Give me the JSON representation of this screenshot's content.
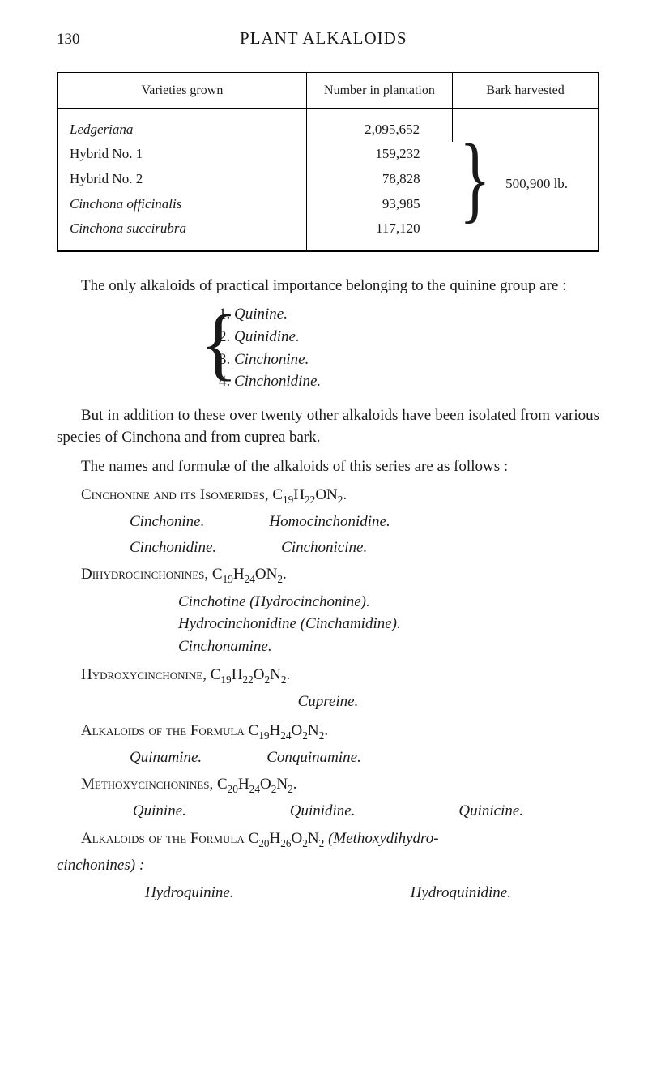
{
  "header": {
    "page_number": "130",
    "title": "PLANT ALKALOIDS"
  },
  "table": {
    "columns": [
      "Varieties grown",
      "Number in plantation",
      "Bark harvested"
    ],
    "rows": [
      {
        "variety": "Ledgeriana",
        "dots": ".    .    .    .    .",
        "number": "2,095,652"
      },
      {
        "variety": "Hybrid No. 1",
        "dots": "    .    .    .    .",
        "number": "159,232",
        "variety_upright": true
      },
      {
        "variety": "Hybrid No. 2",
        "dots": "    .    .    .    .",
        "number": "78,828",
        "variety_upright": true
      },
      {
        "variety": "Cinchona officinalis",
        "dots": "    .    .    .",
        "number": "93,985"
      },
      {
        "variety": "Cinchona succirubra",
        "dots": "    .    .    .",
        "number": "117,120"
      }
    ],
    "bark_total": "500,900 lb."
  },
  "intro_para": "The only alkaloids of practical importance belonging to the quinine group are :",
  "quinine_list": [
    {
      "num": "1.",
      "name": "Quinine."
    },
    {
      "num": "2.",
      "name": "Quinidine."
    },
    {
      "num": "3.",
      "name": "Cinchonine."
    },
    {
      "num": "4.",
      "name": "Cinchonidine."
    }
  ],
  "para2": "But in addition to these over twenty other alkaloids have been isolated from various species of Cinchona and from cuprea bark.",
  "para3": "The names and formulæ of the alkaloids of this series are as follows :",
  "sections": {
    "cinchonine": {
      "heading": "Cinchonine and its Isomerides, C₁₉H₂₂ON₂.",
      "items": [
        [
          "Cinchonine.",
          "Homocinchonidine."
        ],
        [
          "Cinchonidine.",
          "Cinchonicine."
        ]
      ]
    },
    "dihydro": {
      "heading": "Dihydrocinchonines, C₁₉H₂₄ON₂.",
      "items": [
        "Cinchotine (Hydrocinchonine).",
        "Hydrocinchonidine (Cinchamidine).",
        "Cinchonamine."
      ]
    },
    "hydroxy": {
      "heading": "Hydroxycinchonine, C₁₉H₂₂O₂N₂.",
      "item": "Cupreine."
    },
    "alkaloids1": {
      "heading": "Alkaloids of the Formula C₁₉H₂₄O₂N₂.",
      "items": [
        "Quinamine.",
        "Conquinamine."
      ]
    },
    "methoxy": {
      "heading": "Methoxycinchonines, C₂₀H₂₄O₂N₂.",
      "items": [
        "Quinine.",
        "Quinidine.",
        "Quinicine."
      ]
    },
    "alkaloids2": {
      "heading_pre": "Alkaloids of the Formula C₂₀H₂₆O₂N₂",
      "heading_suffix": "(Methoxydihydro-",
      "continue": "cinchonines) :",
      "items": [
        "Hydroquinine.",
        "Hydroquinidine."
      ]
    }
  }
}
